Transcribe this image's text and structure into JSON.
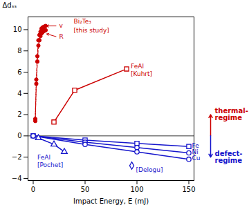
{
  "chart_data": {
    "type": "line",
    "xlabel": "Impact Energy, E (mJ)",
    "ylabel": "Δdₛₛ",
    "xlim": [
      -5,
      155
    ],
    "ylim": [
      -4.2,
      11.2
    ],
    "xticks": [
      0,
      50,
      100,
      150
    ],
    "yticks": [
      -4,
      -2,
      0,
      2,
      4,
      6,
      8,
      10
    ],
    "grid": false,
    "series": [
      {
        "x": [
          2,
          3,
          4,
          5,
          6,
          7,
          8,
          9,
          10,
          11,
          12
        ],
        "values": [
          1.6,
          5.3,
          7.5,
          9.0,
          9.5,
          9.8,
          10.1,
          10.2,
          10.25,
          10.3,
          10.35
        ],
        "color": "#cc0000",
        "marker": "circle_filled",
        "line_style": "dashed",
        "type": "line"
      },
      {
        "x": [
          2,
          3,
          4,
          5,
          6,
          7,
          8,
          9,
          10,
          11,
          12
        ],
        "values": [
          1.4,
          4.9,
          7.0,
          8.5,
          9.0,
          9.4,
          9.65,
          9.75,
          9.85,
          9.9,
          9.95
        ],
        "color": "#cc0000",
        "marker": "circle_filled",
        "line_style": "dashed",
        "type": "line"
      },
      {
        "x": [
          20,
          40,
          90
        ],
        "values": [
          1.3,
          4.3,
          6.3
        ],
        "color": "#cc0000",
        "marker": "square_open",
        "line_style": "solid",
        "type": "line"
      },
      {
        "x": [
          0,
          50,
          100,
          150
        ],
        "values": [
          0.0,
          -0.4,
          -0.7,
          -1.0
        ],
        "color": "#1515cc",
        "marker": "square_open",
        "line_style": "solid",
        "type": "line"
      },
      {
        "x": [
          0,
          50,
          100,
          150
        ],
        "values": [
          0.0,
          -0.6,
          -1.1,
          -1.6
        ],
        "color": "#1515cc",
        "marker": "circle_open",
        "line_style": "solid",
        "type": "line"
      },
      {
        "x": [
          0,
          50,
          100,
          150
        ],
        "values": [
          0.0,
          -0.8,
          -1.5,
          -2.2
        ],
        "color": "#1515cc",
        "marker": "circle_open",
        "line_style": "solid",
        "type": "line"
      },
      {
        "x": [
          95
        ],
        "values": [
          -2.8
        ],
        "color": "#1515cc",
        "marker": "diamond_open",
        "type": "scatter"
      },
      {
        "x": [
          5,
          20,
          30
        ],
        "values": [
          -0.2,
          -0.8,
          -1.5
        ],
        "color": "#1515cc",
        "marker": "triangle_open",
        "line_style": "solid",
        "type": "line"
      }
    ],
    "reference_line": {
      "y": 0,
      "color": "#000000"
    },
    "arrows": [
      {
        "x": 22,
        "y": 10.35,
        "x2": 13,
        "y2": 10.35,
        "color": "#cc0000"
      },
      {
        "x": 22,
        "y": 9.35,
        "x2": 13,
        "y2": 9.6,
        "color": "#cc0000"
      }
    ],
    "annotations": [
      {
        "text": "v",
        "x": 23,
        "y": 10.35,
        "color": "#cc0000"
      },
      {
        "text": "R",
        "x": 23,
        "y": 9.35,
        "color": "#cc0000"
      },
      {
        "text": "Bi₂Te₃",
        "x": 37,
        "y": 10.75,
        "color": "#cc0000"
      },
      {
        "text": "[this study]",
        "x": 37,
        "y": 9.9,
        "color": "#cc0000"
      },
      {
        "text": "FeAl",
        "x": 92,
        "y": 6.55,
        "color": "#cc0000"
      },
      {
        "text": "[Kuhrt]",
        "x": 92,
        "y": 5.85,
        "color": "#cc0000"
      },
      {
        "text": "Fe",
        "x": 151,
        "y": -0.9,
        "color": "#1515cc"
      },
      {
        "text": "Ni",
        "x": 151,
        "y": -1.5,
        "color": "#1515cc"
      },
      {
        "text": "Cu",
        "x": 151,
        "y": -2.1,
        "color": "#1515cc"
      },
      {
        "text": "[Delogu]",
        "x": 97,
        "y": -3.2,
        "color": "#1515cc"
      },
      {
        "text": "FeAl",
        "x": 2,
        "y": -2.05,
        "color": "#1515cc"
      },
      {
        "text": "[Pochet]",
        "x": 2,
        "y": -2.75,
        "color": "#1515cc"
      }
    ],
    "regimes": [
      {
        "text": "thermal-\nregime",
        "from": 0,
        "to": 2,
        "color": "#cc0000"
      },
      {
        "text": "defect-\nregime",
        "from": 0,
        "to": -2,
        "color": "#1515cc"
      }
    ]
  }
}
